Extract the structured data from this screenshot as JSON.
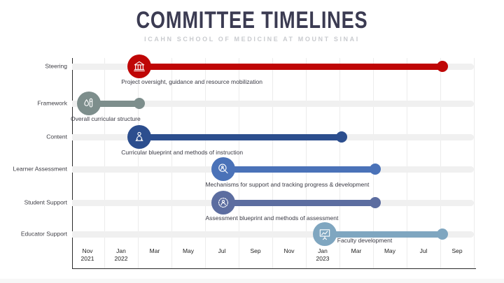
{
  "title": "COMMITTEE TIMELINES",
  "subtitle": "ICAHN SCHOOL OF MEDICINE AT MOUNT SINAI",
  "colors": {
    "title_text": "#3b3b52",
    "subtitle_text": "#c9cbcf",
    "axis_line": "#2b2b2b",
    "gridline": "#ececec",
    "track": "#f0f0f0",
    "label_text": "#3f3f46",
    "steering_red": "#bf0606",
    "framework_slate": "#7d8e8c",
    "content_navy": "#2c4e8e",
    "learner_blue": "#4a72b8",
    "student_indigo": "#5c6da0",
    "educator_steel": "#7fa6c0"
  },
  "chart_data": {
    "type": "timeline",
    "title": "COMMITTEE TIMELINES",
    "subtitle": "ICAHN SCHOOL OF MEDICINE AT MOUNT SINAI",
    "x_axis": {
      "range_start": "2021-10",
      "range_end": "2023-10",
      "ticks": [
        {
          "month": "Nov",
          "year": "2021"
        },
        {
          "month": "Jan",
          "year": "2022"
        },
        {
          "month": "Mar",
          "year": ""
        },
        {
          "month": "May",
          "year": ""
        },
        {
          "month": "Jul",
          "year": ""
        },
        {
          "month": "Sep",
          "year": ""
        },
        {
          "month": "Nov",
          "year": ""
        },
        {
          "month": "Jan",
          "year": "2023"
        },
        {
          "month": "Mar",
          "year": ""
        },
        {
          "month": "May",
          "year": ""
        },
        {
          "month": "Jul",
          "year": ""
        },
        {
          "month": "Sep",
          "year": ""
        }
      ]
    },
    "rows": [
      {
        "committee": "Steering",
        "description": "Project oversight, guidance and resource mobilization",
        "start": "2022-02",
        "end": "2023-08",
        "color": "#bf0606",
        "icon": "institution-icon",
        "description_placement": "below"
      },
      {
        "committee": "Framework",
        "description": "Overall curricular structure",
        "start": "2021-11",
        "end": "2022-02",
        "color": "#7d8e8c",
        "icon": "lab-tube-icon",
        "description_placement": "below"
      },
      {
        "committee": "Content",
        "description": "Curricular blueprint and methods of instruction",
        "start": "2022-02",
        "end": "2023-02",
        "color": "#2c4e8e",
        "icon": "instructor-person-icon",
        "description_placement": "below"
      },
      {
        "committee": "Learner Assessment",
        "description": "Mechanisms for support and tracking progress & development",
        "start": "2022-07",
        "end": "2023-04",
        "color": "#4a72b8",
        "icon": "magnifier-person-icon",
        "description_placement": "below"
      },
      {
        "committee": "Student Support",
        "description": "Assessment blueprint and methods of assessment",
        "start": "2022-07",
        "end": "2023-04",
        "color": "#5c6da0",
        "icon": "badge-person-icon",
        "description_placement": "below"
      },
      {
        "committee": "Educator Support",
        "description": "Faculty development",
        "start": "2023-01",
        "end": "2023-08",
        "color": "#7fa6c0",
        "icon": "presentation-chart-icon",
        "description_placement": "right"
      }
    ]
  }
}
